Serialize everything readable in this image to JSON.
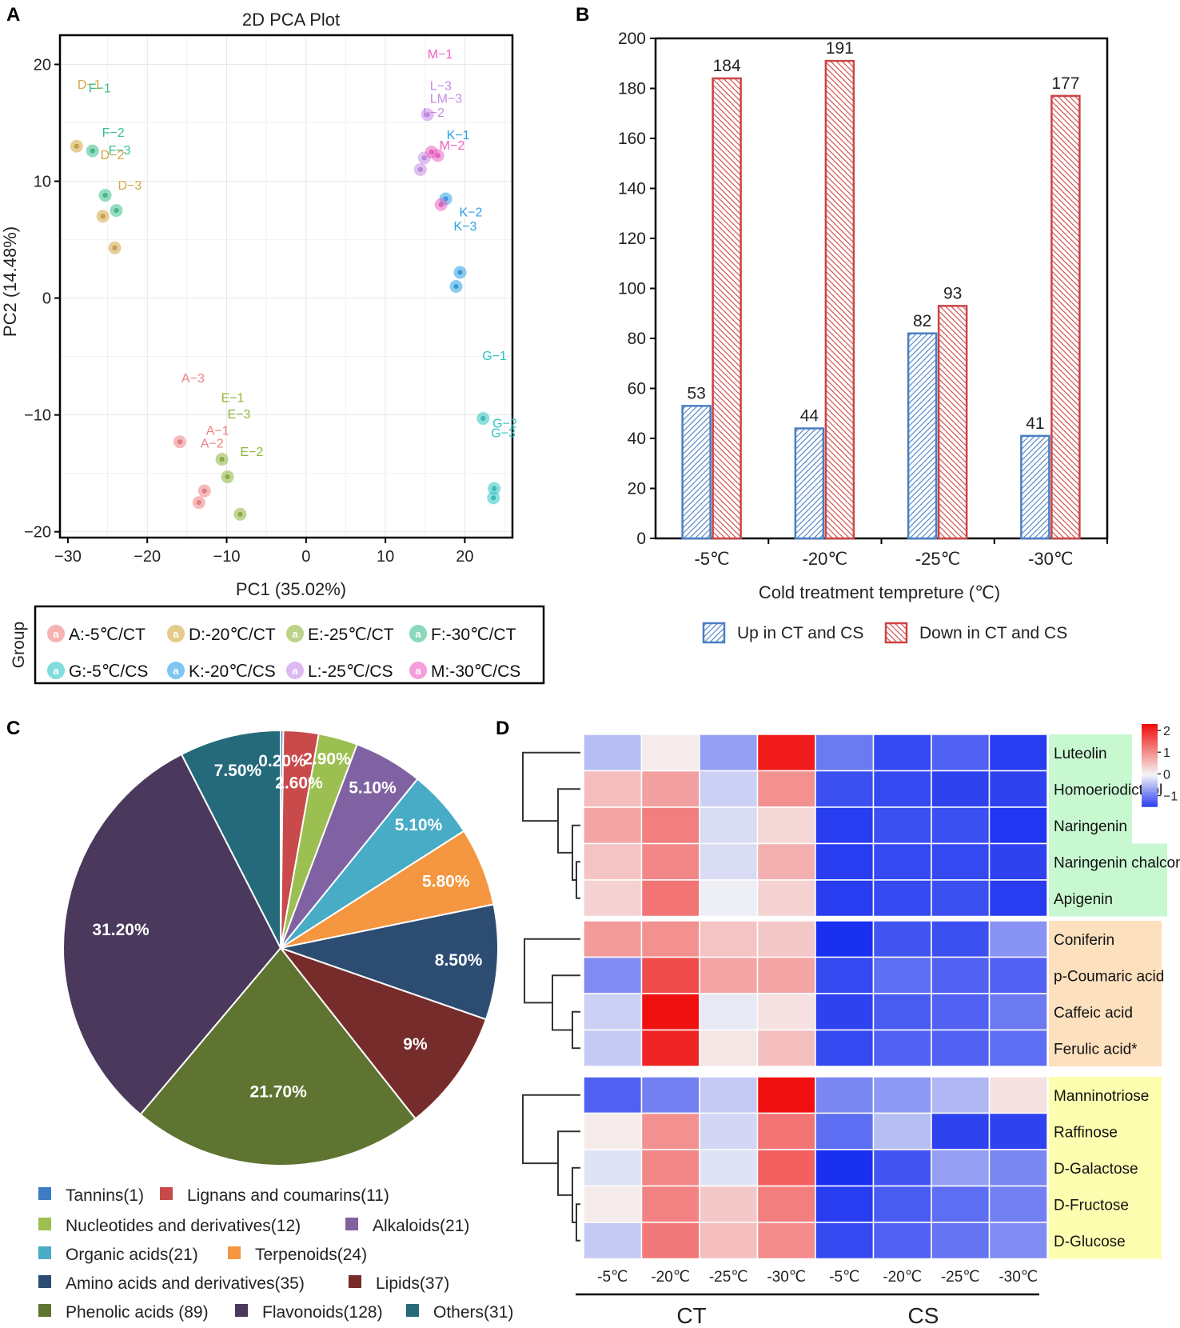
{
  "chart_data": [
    {
      "panel": "A",
      "type": "scatter",
      "title": "2D PCA Plot",
      "xlabel": "PC1 (35.02%)",
      "ylabel": "PC2 (14.48%)",
      "xlim": [
        -31,
        26
      ],
      "ylim": [
        -20.5,
        22.5
      ],
      "xticks": [
        -30,
        -20,
        -10,
        0,
        10,
        20
      ],
      "yticks": [
        -20,
        -10,
        0,
        10,
        20
      ],
      "xticklabels": [
        "−30",
        "−20",
        "−10",
        "0",
        "10",
        "20"
      ],
      "yticklabels": [
        "−20",
        "−10",
        "0",
        "10",
        "20"
      ],
      "grid": true,
      "legend_title": "Group",
      "groups": [
        {
          "key": "A",
          "label": "A:-5℃/CT",
          "color": "#f08080",
          "points": [
            [
              -15.9,
              -12.3
            ],
            [
              -12.8,
              -16.5
            ],
            [
              -13.5,
              -17.5
            ]
          ]
        },
        {
          "key": "D",
          "label": "D:-20℃/CT",
          "color": "#d4a640",
          "points": [
            [
              -28.9,
              13.0
            ],
            [
              -25.6,
              7.0
            ],
            [
              -24.1,
              4.3
            ]
          ]
        },
        {
          "key": "E",
          "label": "E:-25℃/CT",
          "color": "#8db53a",
          "points": [
            [
              -10.6,
              -13.8
            ],
            [
              -9.9,
              -15.3
            ],
            [
              -8.3,
              -18.5
            ]
          ]
        },
        {
          "key": "F",
          "label": "F:-30℃/CT",
          "color": "#3bbf8c",
          "points": [
            [
              -26.9,
              12.6
            ],
            [
              -25.3,
              8.8
            ],
            [
              -23.9,
              7.5
            ]
          ]
        },
        {
          "key": "G",
          "label": "G:-5℃/CS",
          "color": "#2ec4c4",
          "points": [
            [
              22.3,
              -10.3
            ],
            [
              23.7,
              -16.3
            ],
            [
              23.6,
              -17.1
            ]
          ]
        },
        {
          "key": "K",
          "label": "K:-20℃/CS",
          "color": "#2aa0e8",
          "points": [
            [
              17.6,
              8.5
            ],
            [
              19.4,
              2.2
            ],
            [
              18.9,
              1.0
            ]
          ]
        },
        {
          "key": "L",
          "label": "L:-25℃/CS",
          "color": "#c68ae8",
          "points": [
            [
              15.3,
              15.7
            ],
            [
              14.9,
              12.0
            ],
            [
              14.4,
              11.0
            ]
          ]
        },
        {
          "key": "M",
          "label": "M:-30℃/CS",
          "color": "#ee5ec4",
          "points": [
            [
              16.6,
              12.2
            ],
            [
              17.0,
              8.0
            ],
            [
              15.8,
              12.5
            ]
          ]
        }
      ],
      "annotations": [
        {
          "text": "M−1",
          "x": 15.3,
          "y": 20.5,
          "group": "M"
        },
        {
          "text": "L−3",
          "x": 15.6,
          "y": 17.8,
          "group": "L"
        },
        {
          "text": "LM−3",
          "x": 15.6,
          "y": 16.7,
          "group": "L"
        },
        {
          "text": "L−2",
          "x": 14.7,
          "y": 15.5,
          "group": "L"
        },
        {
          "text": "K−1",
          "x": 17.7,
          "y": 13.6,
          "group": "K"
        },
        {
          "text": "M−2",
          "x": 16.8,
          "y": 12.7,
          "group": "M"
        },
        {
          "text": "K−2",
          "x": 19.3,
          "y": 7.0,
          "group": "K"
        },
        {
          "text": "K−3",
          "x": 18.6,
          "y": 5.8,
          "group": "K"
        },
        {
          "text": "D−1",
          "x": -28.8,
          "y": 17.9,
          "group": "D"
        },
        {
          "text": "F−1",
          "x": -27.4,
          "y": 17.6,
          "group": "F"
        },
        {
          "text": "F−2",
          "x": -25.7,
          "y": 13.8,
          "group": "F"
        },
        {
          "text": "F−3",
          "x": -24.9,
          "y": 12.3,
          "group": "F"
        },
        {
          "text": "D−2",
          "x": -25.9,
          "y": 11.9,
          "group": "D"
        },
        {
          "text": "D−3",
          "x": -23.7,
          "y": 9.3,
          "group": "D"
        },
        {
          "text": "G−1",
          "x": 22.2,
          "y": -5.3,
          "group": "G"
        },
        {
          "text": "G−2",
          "x": 23.5,
          "y": -11.1,
          "group": "G"
        },
        {
          "text": "G−3",
          "x": 23.3,
          "y": -11.9,
          "group": "G"
        },
        {
          "text": "A−3",
          "x": -15.7,
          "y": -7.2,
          "group": "A"
        },
        {
          "text": "E−1",
          "x": -10.7,
          "y": -8.9,
          "group": "E"
        },
        {
          "text": "E−3",
          "x": -9.9,
          "y": -10.3,
          "group": "E"
        },
        {
          "text": "A−1",
          "x": -12.6,
          "y": -11.7,
          "group": "A"
        },
        {
          "text": "A−2",
          "x": -13.3,
          "y": -12.8,
          "group": "A"
        },
        {
          "text": "E−2",
          "x": -8.3,
          "y": -13.5,
          "group": "E"
        }
      ]
    },
    {
      "panel": "B",
      "type": "bar",
      "categories": [
        "-5℃",
        "-20℃",
        "-25℃",
        "-30℃"
      ],
      "series": [
        {
          "name": "Up in CT and CS",
          "color": "#4a7ec2",
          "values": [
            53,
            44,
            82,
            41
          ]
        },
        {
          "name": "Down in CT and CS",
          "color": "#cc4444",
          "values": [
            184,
            191,
            93,
            177
          ]
        }
      ],
      "xlabel": "Cold treatment tempreture (℃)",
      "ylabel": "",
      "ylim": [
        0,
        200
      ],
      "yticks": [
        0,
        20,
        40,
        60,
        80,
        100,
        120,
        140,
        160,
        180,
        200
      ]
    },
    {
      "panel": "C",
      "type": "pie",
      "slices": [
        {
          "name": "Tannins",
          "count": 1,
          "label": "Tannins(1)",
          "percent": 0.2,
          "pct_label": "0.20%",
          "color": "#3d7cc4"
        },
        {
          "name": "Lignans and coumarins",
          "count": 11,
          "label": "Lignans and coumarins(11)",
          "percent": 2.6,
          "pct_label": "2.60%",
          "color": "#c94a4a"
        },
        {
          "name": "Nucleotides and derivatives",
          "count": 12,
          "label": "Nucleotides and derivatives(12)",
          "percent": 2.9,
          "pct_label": "2.90%",
          "color": "#9cbf52"
        },
        {
          "name": "Alkaloids",
          "count": 21,
          "label": "Alkaloids(21)",
          "percent": 5.1,
          "pct_label": "5.10%",
          "color": "#8062a2"
        },
        {
          "name": "Organic acids",
          "count": 21,
          "label": "Organic acids(21)",
          "percent": 5.1,
          "pct_label": "5.10%",
          "color": "#48acc6"
        },
        {
          "name": "Terpenoids",
          "count": 24,
          "label": "Terpenoids(24)",
          "percent": 5.8,
          "pct_label": "5.80%",
          "color": "#f59640"
        },
        {
          "name": "Amino acids and derivatives",
          "count": 35,
          "label": "Amino acids and derivatives(35)",
          "percent": 8.5,
          "pct_label": "8.50%",
          "color": "#2c4c72"
        },
        {
          "name": "Lipids",
          "count": 37,
          "label": "Lipids(37)",
          "percent": 9.0,
          "pct_label": "9%",
          "color": "#772c2c"
        },
        {
          "name": "Phenolic acids",
          "count": 89,
          "label": "Phenolic acids (89)",
          "percent": 21.7,
          "pct_label": "21.70%",
          "color": "#5f7430"
        },
        {
          "name": "Flavonoids",
          "count": 128,
          "label": "Flavonoids(128)",
          "percent": 31.2,
          "pct_label": "31.20%",
          "color": "#4a395c"
        },
        {
          "name": "Others",
          "count": 31,
          "label": "Others(31)",
          "percent": 7.5,
          "pct_label": "7.50%",
          "color": "#246a7a"
        }
      ]
    },
    {
      "panel": "D",
      "type": "heatmap",
      "columns": [
        "-5℃",
        "-20℃",
        "-25℃",
        "-30℃",
        "-5℃",
        "-20℃",
        "-25℃",
        "-30℃"
      ],
      "column_groups": [
        {
          "label": "CT",
          "span": 4
        },
        {
          "label": "CS",
          "span": 4
        }
      ],
      "colorbar": {
        "min": -1.5,
        "max": 2.3,
        "ticks": [
          2,
          1,
          0,
          -1
        ],
        "labels": [
          "2",
          "1",
          "0",
          "−1"
        ],
        "low": "#1a30f0",
        "mid": "#f5f5f5",
        "high": "#f01010"
      },
      "blocks": [
        {
          "band_color": "#c8f8d0",
          "rows": [
            {
              "name": "Luteolin",
              "values": [
                -0.45,
                0.1,
                -0.7,
                2.2,
                -1.0,
                -1.4,
                -1.2,
                -1.5
              ]
            },
            {
              "name": "Homoeriodictyol",
              "values": [
                0.55,
                0.85,
                -0.3,
                1.0,
                -1.35,
                -1.4,
                -1.45,
                -1.45
              ]
            },
            {
              "name": "Naringenin",
              "values": [
                0.8,
                1.2,
                -0.2,
                0.3,
                -1.5,
                -1.35,
                -1.35,
                -1.55
              ]
            },
            {
              "name": "Naringenin chalcone",
              "values": [
                0.5,
                1.1,
                -0.2,
                0.7,
                -1.5,
                -1.4,
                -1.4,
                -1.45
              ]
            },
            {
              "name": "Apigenin",
              "values": [
                0.35,
                1.3,
                -0.05,
                0.35,
                -1.5,
                -1.4,
                -1.35,
                -1.5
              ]
            }
          ]
        },
        {
          "band_color": "#fde0be",
          "rows": [
            {
              "name": "Coniferin",
              "values": [
                0.9,
                1.0,
                0.5,
                0.45,
                -1.6,
                -1.3,
                -1.35,
                -0.8
              ]
            },
            {
              "name": "p-Coumaric acid",
              "values": [
                -0.85,
                1.7,
                0.8,
                0.8,
                -1.4,
                -1.1,
                -1.2,
                -1.2
              ]
            },
            {
              "name": "Caffeic acid",
              "values": [
                -0.3,
                2.3,
                -0.1,
                0.2,
                -1.45,
                -1.25,
                -1.2,
                -1.0
              ]
            },
            {
              "name": "Ferulic acid*",
              "values": [
                -0.35,
                2.1,
                0.15,
                0.55,
                -1.4,
                -1.2,
                -1.2,
                -1.1
              ]
            }
          ]
        },
        {
          "band_color": "#fefeb0",
          "rows": [
            {
              "name": "Manninotriose",
              "values": [
                -1.2,
                -0.95,
                -0.35,
                2.3,
                -0.9,
                -0.75,
                -0.5,
                0.2
              ]
            },
            {
              "name": "Raffinose",
              "values": [
                0.1,
                1.0,
                -0.25,
                1.3,
                -1.1,
                -0.45,
                -1.45,
                -1.45
              ]
            },
            {
              "name": "D-Galactose",
              "values": [
                -0.15,
                1.1,
                -0.15,
                1.5,
                -1.65,
                -1.3,
                -0.7,
                -0.9
              ]
            },
            {
              "name": "D-Fructose",
              "values": [
                0.1,
                1.15,
                0.45,
                1.2,
                -1.5,
                -1.25,
                -1.1,
                -0.95
              ]
            },
            {
              "name": "D-Glucose",
              "values": [
                -0.35,
                1.25,
                0.55,
                1.05,
                -1.4,
                -1.2,
                -1.05,
                -0.85
              ]
            }
          ]
        }
      ]
    }
  ],
  "panels": {
    "a": "A",
    "b": "B",
    "c": "C",
    "d": "D"
  }
}
